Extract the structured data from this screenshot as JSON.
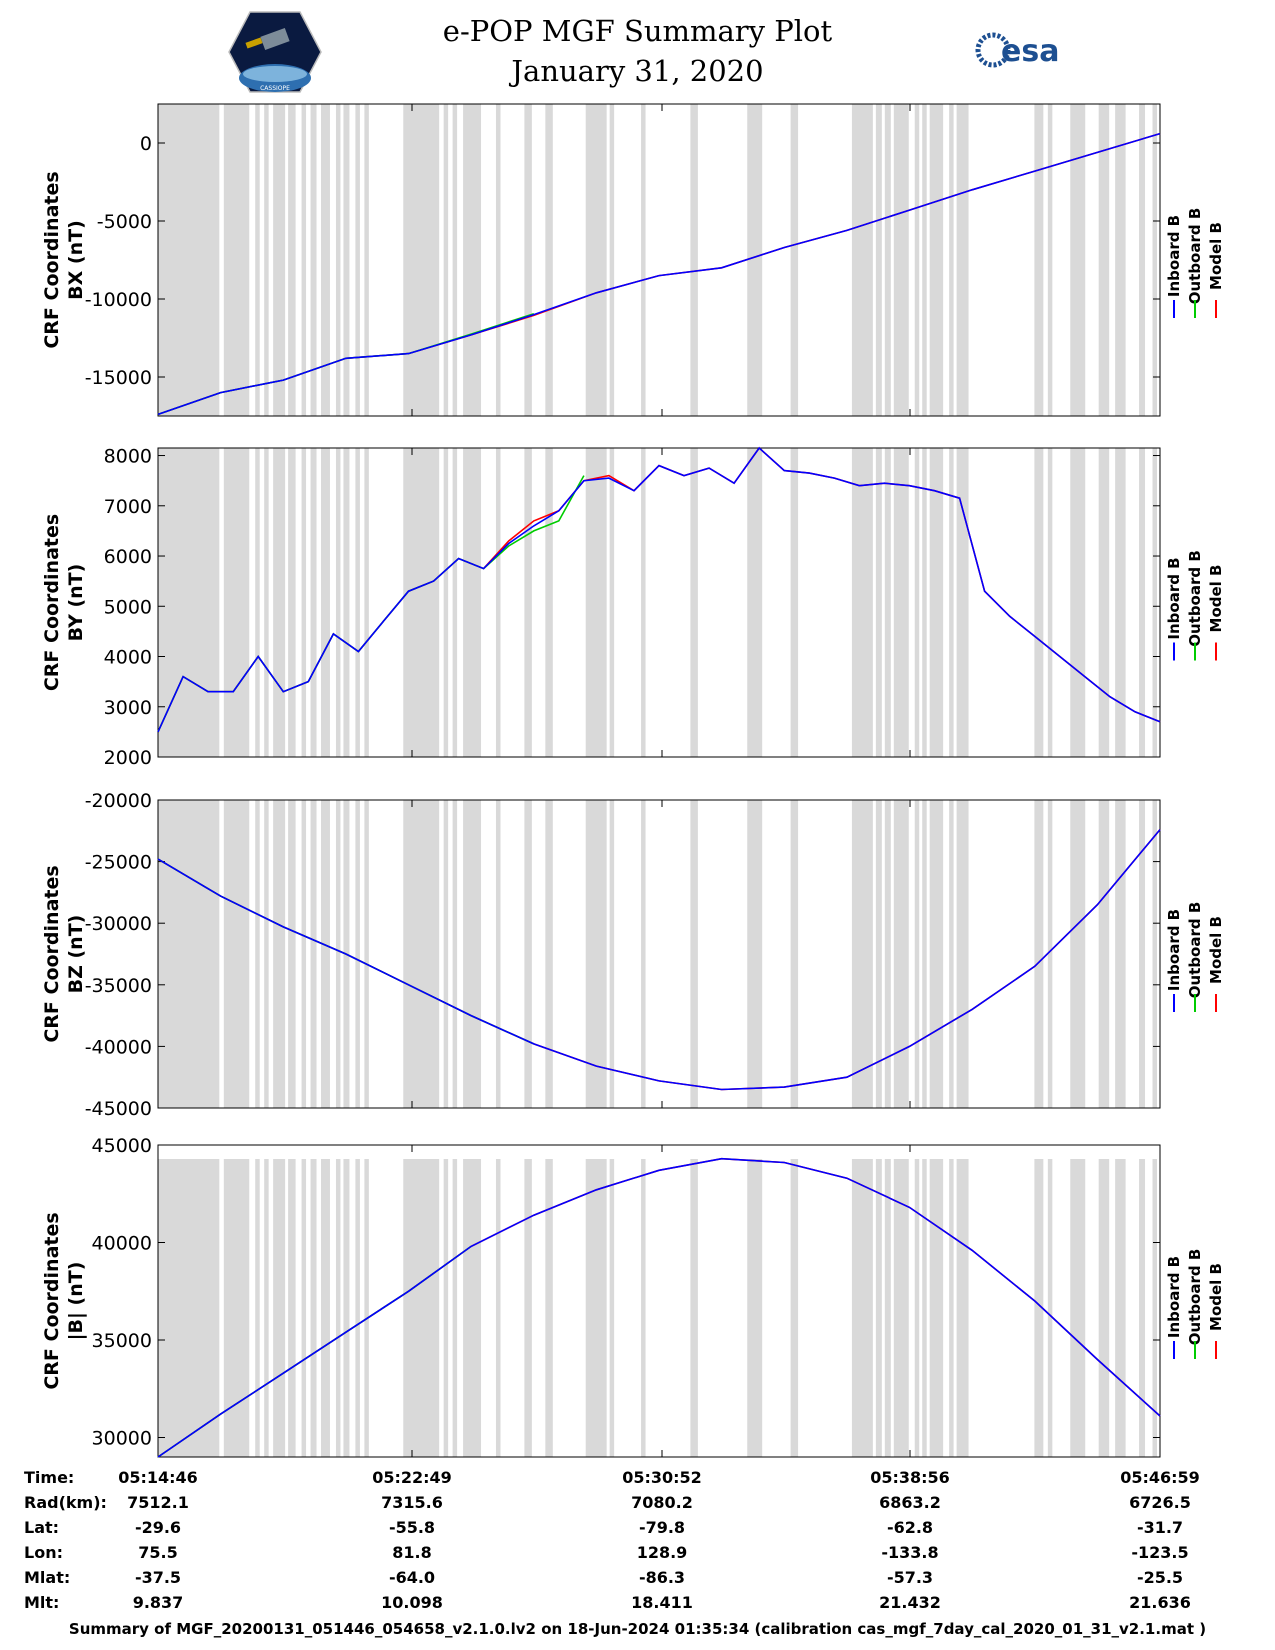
{
  "header": {
    "title": "e-POP MGF Summary Plot",
    "date": "January 31, 2020",
    "left_logo_text": "CASSIOPE",
    "right_logo_text": "esa"
  },
  "colors": {
    "inboard": "#0000ff",
    "outboard": "#00cc00",
    "model": "#ff0000",
    "gap": "#d9d9d9"
  },
  "chart_data": [
    {
      "type": "line",
      "ylabel_line1": "CRF Coordinates",
      "ylabel_line2": "BX (nT)",
      "legend": [
        "Inboard B",
        "Outboard B",
        "Model B"
      ],
      "ylim": [
        -17500,
        2500
      ],
      "yticks": [
        0,
        -5000,
        -10000,
        -15000
      ],
      "ytick_labels": [
        "0",
        "-5000",
        "-10000",
        "-15000"
      ],
      "x": [
        0,
        2,
        4,
        6,
        8,
        10,
        12,
        14,
        16,
        18,
        20,
        22,
        24,
        26,
        28,
        30,
        32
      ],
      "series": [
        {
          "name": "Inboard B",
          "values": [
            -17400,
            -16000,
            -15200,
            -13800,
            -13500,
            -12300,
            -11000,
            -9600,
            -8500,
            -8000,
            -6700,
            -5600,
            -4300,
            -3000,
            -1800,
            -600,
            600
          ]
        },
        {
          "name": "Outboard B",
          "values": [
            -17400,
            -16000,
            -15200,
            -13800,
            -13500,
            -12250,
            -10950,
            null,
            null,
            null,
            null,
            null,
            null,
            null,
            null,
            null,
            null
          ]
        },
        {
          "name": "Model B",
          "values": [
            -17400,
            -16000,
            -15200,
            -13800,
            -13500,
            -12300,
            -11050,
            -9600,
            -8500,
            -8000,
            -6700,
            -5600,
            -4300,
            -3000,
            -1800,
            -600,
            600
          ]
        }
      ]
    },
    {
      "type": "line",
      "ylabel_line1": "CRF Coordinates",
      "ylabel_line2": "BY (nT)",
      "legend": [
        "Inboard B",
        "Outboard B",
        "Model B"
      ],
      "ylim": [
        2000,
        8150
      ],
      "yticks": [
        8000,
        7000,
        6000,
        5000,
        4000,
        3000,
        2000
      ],
      "ytick_labels": [
        "8000",
        "7000",
        "6000",
        "5000",
        "4000",
        "3000",
        "2000"
      ],
      "x": [
        0,
        1,
        2,
        3,
        4,
        5,
        6,
        7,
        8,
        9,
        10,
        11,
        12,
        13,
        14,
        15,
        16,
        17,
        18,
        19,
        20,
        21,
        22,
        23,
        24,
        25,
        26,
        27,
        28,
        29,
        30,
        31,
        32
      ],
      "series": [
        {
          "name": "Inboard B",
          "values": [
            2500,
            3600,
            3300,
            3300,
            4000,
            3300,
            3500,
            4450,
            4100,
            4700,
            5300,
            5500,
            5950,
            5750,
            6250,
            6600,
            6900,
            7500,
            7550,
            7300,
            7800,
            7600,
            7750,
            7450,
            8150,
            7700,
            7650,
            7550,
            7400,
            7450,
            7400,
            7300,
            7150
          ]
        },
        {
          "name": "Outboard B",
          "values": [
            2500,
            3600,
            3300,
            3300,
            4000,
            3300,
            3500,
            4450,
            4100,
            4700,
            5300,
            5500,
            5950,
            5750,
            6200,
            6500,
            6700,
            7600,
            null,
            null,
            null,
            null,
            null,
            null,
            null,
            null,
            null,
            null,
            null,
            null,
            null,
            null,
            null
          ]
        },
        {
          "name": "Model B",
          "values": [
            2500,
            3600,
            3300,
            3300,
            4000,
            3300,
            3500,
            4450,
            4100,
            4700,
            5300,
            5500,
            5950,
            5750,
            6300,
            6700,
            6900,
            7500,
            7600,
            7300,
            7800,
            7600,
            7750,
            7450,
            8150,
            7700,
            7650,
            7550,
            7400,
            7450,
            7400,
            7300,
            7150
          ]
        }
      ],
      "tail_x": [
        32,
        33,
        34,
        35,
        36,
        37,
        38,
        39,
        40
      ],
      "tail_values": [
        7150,
        5300,
        4800,
        4400,
        4000,
        3600,
        3200,
        2900,
        2700
      ]
    },
    {
      "type": "line",
      "ylabel_line1": "CRF Coordinates",
      "ylabel_line2": "BZ (nT)",
      "legend": [
        "Inboard B",
        "Outboard B",
        "Model B"
      ],
      "ylim": [
        -45000,
        -20000
      ],
      "yticks": [
        -20000,
        -25000,
        -30000,
        -35000,
        -40000,
        -45000
      ],
      "ytick_labels": [
        "-20000",
        "-25000",
        "-30000",
        "-35000",
        "-40000",
        "-45000"
      ],
      "x": [
        0,
        2,
        4,
        6,
        8,
        10,
        12,
        14,
        16,
        18,
        20,
        22,
        24,
        26,
        28,
        30,
        32
      ],
      "series": [
        {
          "name": "Inboard B",
          "values": [
            -24800,
            -27800,
            -30300,
            -32500,
            -35000,
            -37500,
            -39800,
            -41600,
            -42800,
            -43500,
            -43300,
            -42500,
            -40000,
            -37000,
            -33500,
            -28500,
            -22400
          ]
        },
        {
          "name": "Outboard B",
          "values": [
            -24800,
            -27800,
            -30300,
            -32500,
            -35000,
            -37500,
            -39800,
            null,
            null,
            null,
            null,
            null,
            null,
            null,
            null,
            null,
            null
          ]
        },
        {
          "name": "Model B",
          "values": [
            -24800,
            -27800,
            -30300,
            -32500,
            -35000,
            -37500,
            -39800,
            -41600,
            -42800,
            -43500,
            -43300,
            -42500,
            -40000,
            -37000,
            -33500,
            -28500,
            -22400
          ]
        }
      ]
    },
    {
      "type": "line",
      "ylabel_line1": "CRF Coordinates",
      "ylabel_line2": "|B| (nT)",
      "legend": [
        "Inboard B",
        "Outboard B",
        "Model B"
      ],
      "ylim": [
        29000,
        45000
      ],
      "yticks": [
        45000,
        40000,
        35000,
        30000
      ],
      "ytick_labels": [
        "45000",
        "40000",
        "35000",
        "30000"
      ],
      "x": [
        0,
        2,
        4,
        6,
        8,
        10,
        12,
        14,
        16,
        18,
        20,
        22,
        24,
        26,
        28,
        30,
        32
      ],
      "series": [
        {
          "name": "Inboard B",
          "values": [
            29000,
            31200,
            33300,
            35400,
            37500,
            39800,
            41400,
            42700,
            43700,
            44300,
            44100,
            43300,
            41800,
            39600,
            37000,
            34000,
            31100
          ]
        },
        {
          "name": "Outboard B",
          "values": [
            29000,
            31200,
            33300,
            35400,
            37500,
            39800,
            null,
            null,
            null,
            null,
            null,
            null,
            null,
            null,
            null,
            null,
            null
          ]
        },
        {
          "name": "Model B",
          "values": [
            29000,
            31200,
            33300,
            35400,
            37500,
            39800,
            41400,
            42700,
            43700,
            44300,
            44100,
            43300,
            41800,
            39600,
            37000,
            34000,
            31100
          ]
        }
      ]
    }
  ],
  "gap_bands": [
    [
      0.0,
      2.05
    ],
    [
      2.2,
      3.05
    ],
    [
      3.25,
      3.4
    ],
    [
      3.55,
      3.7
    ],
    [
      3.85,
      4.25
    ],
    [
      4.35,
      4.6
    ],
    [
      4.8,
      4.95
    ],
    [
      5.1,
      5.3
    ],
    [
      5.45,
      5.75
    ],
    [
      5.95,
      6.1
    ],
    [
      6.2,
      6.4
    ],
    [
      6.6,
      6.75
    ],
    [
      6.9,
      7.05
    ],
    [
      8.2,
      9.4
    ],
    [
      9.55,
      9.7
    ],
    [
      9.85,
      10.0
    ],
    [
      10.2,
      10.8
    ],
    [
      11.3,
      11.45
    ],
    [
      12.25,
      12.5
    ],
    [
      12.95,
      13.2
    ],
    [
      14.3,
      15.0
    ],
    [
      15.1,
      15.25
    ],
    [
      16.15,
      16.3
    ],
    [
      17.8,
      18.05
    ],
    [
      19.7,
      20.2
    ],
    [
      21.15,
      21.4
    ],
    [
      23.2,
      23.9
    ],
    [
      24.0,
      24.2
    ],
    [
      24.3,
      24.5
    ],
    [
      24.6,
      25.1
    ],
    [
      25.3,
      25.45
    ],
    [
      25.55,
      25.7
    ],
    [
      25.8,
      26.25
    ],
    [
      26.45,
      26.6
    ],
    [
      26.7,
      27.1
    ],
    [
      29.3,
      29.6
    ],
    [
      29.75,
      29.9
    ],
    [
      30.5,
      31.0
    ],
    [
      31.45,
      31.8
    ],
    [
      32.0,
      32.35
    ],
    [
      32.8,
      33.0
    ],
    [
      33.25,
      33.4
    ]
  ],
  "x_ticks": [
    "05:14:46",
    "05:22:49",
    "05:30:52",
    "05:38:56",
    "05:46:59"
  ],
  "meta": {
    "labels": [
      "Time:",
      "Rad(km):",
      "Lat:",
      "Lon:",
      "Mlat:",
      "Mlt:"
    ],
    "rows": [
      [
        "05:14:46",
        "05:22:49",
        "05:30:52",
        "05:38:56",
        "05:46:59"
      ],
      [
        "7512.1",
        "7315.6",
        "7080.2",
        "6863.2",
        "6726.5"
      ],
      [
        "-29.6",
        "-55.8",
        "-79.8",
        "-62.8",
        "-31.7"
      ],
      [
        "75.5",
        "81.8",
        "128.9",
        "-133.8",
        "-123.5"
      ],
      [
        "-37.5",
        "-64.0",
        "-86.3",
        "-57.3",
        "-25.5"
      ],
      [
        "9.837",
        "10.098",
        "18.411",
        "21.432",
        "21.636"
      ]
    ]
  },
  "footer": "Summary of MGF_20200131_051446_054658_v2.1.0.lv2 on 18-Jun-2024 01:35:34 (calibration cas_mgf_7day_cal_2020_01_31_v2.1.mat )"
}
